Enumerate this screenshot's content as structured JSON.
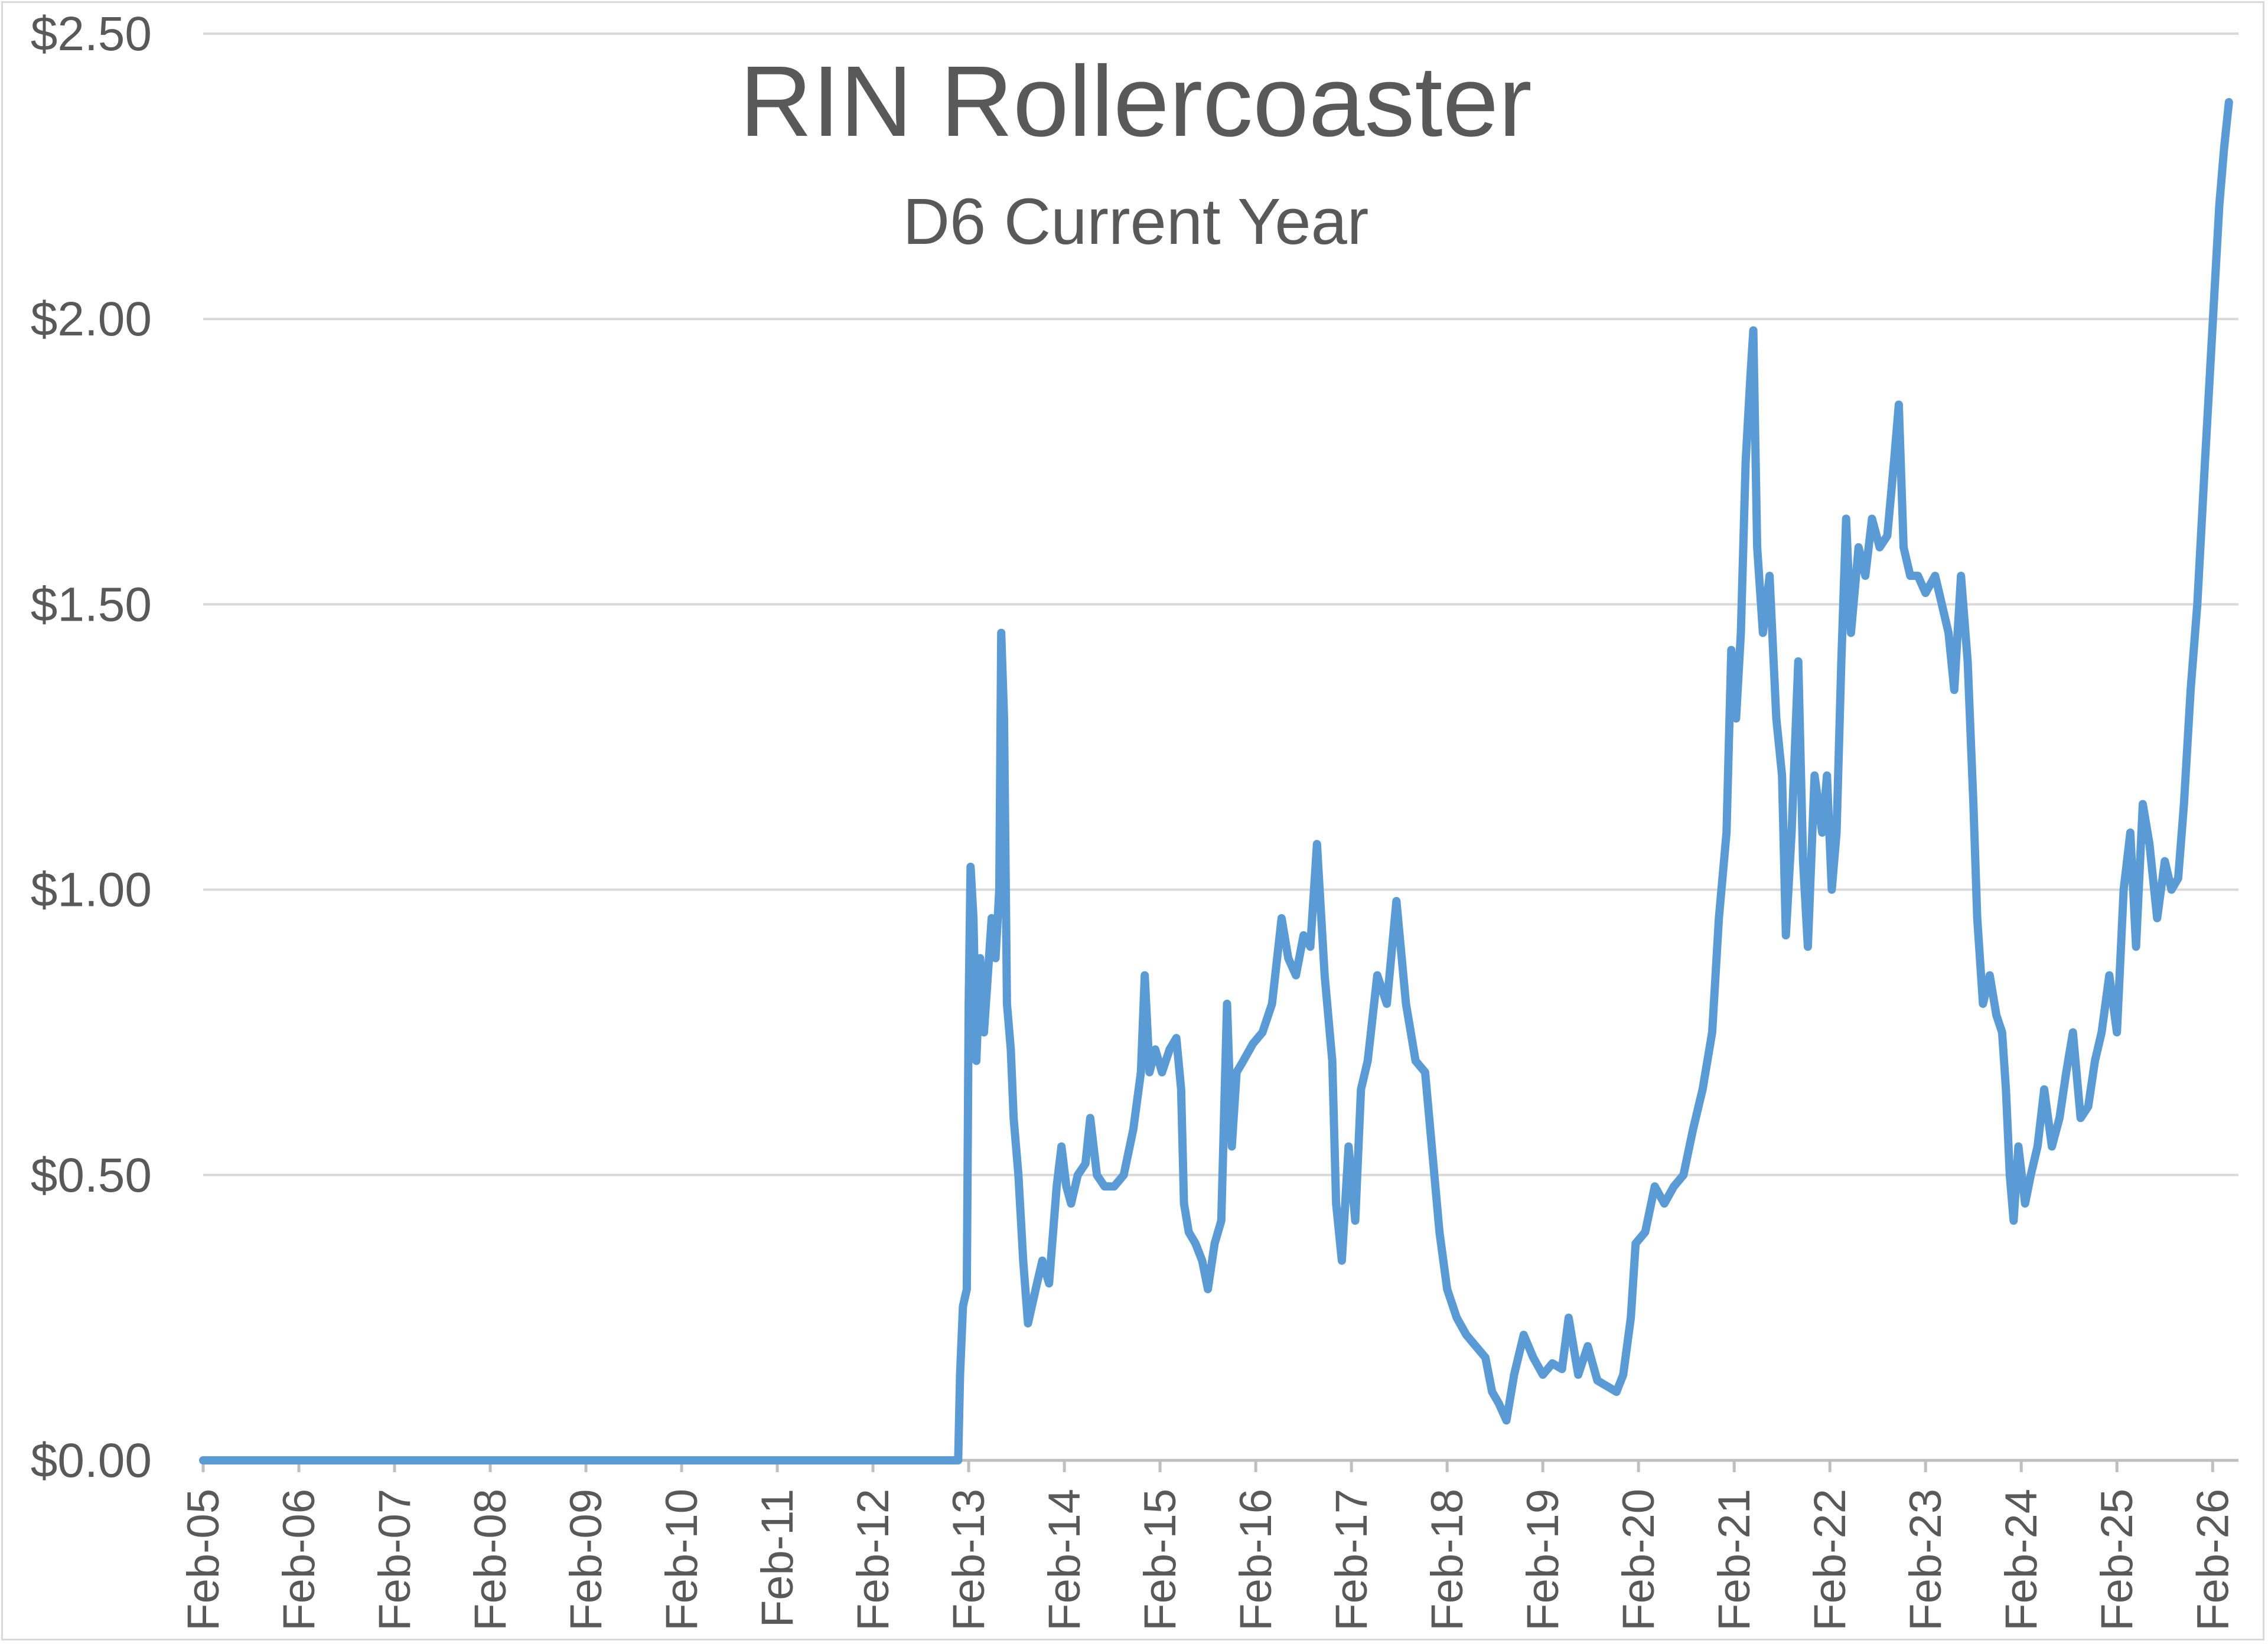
{
  "chart_data": {
    "type": "line",
    "title": "RIN Rollercoaster",
    "subtitle": "D6 Current Year",
    "xlabel": "",
    "ylabel": "",
    "ylim": [
      0,
      2.5
    ],
    "yticks": [
      0,
      0.5,
      1.0,
      1.5,
      2.0,
      2.5
    ],
    "ytick_labels": [
      "$0.00",
      "$0.50",
      "$1.00",
      "$1.50",
      "$2.00",
      "$2.50"
    ],
    "xtick_labels": [
      "Feb-05",
      "Feb-06",
      "Feb-07",
      "Feb-08",
      "Feb-09",
      "Feb-10",
      "Feb-11",
      "Feb-12",
      "Feb-13",
      "Feb-14",
      "Feb-15",
      "Feb-16",
      "Feb-17",
      "Feb-18",
      "Feb-19",
      "Feb-20",
      "Feb-21",
      "Feb-22",
      "Feb-23",
      "Feb-24",
      "Feb-25",
      "Feb-26"
    ],
    "xlim": [
      2005.08,
      2026.35
    ],
    "grid": true,
    "legend": false,
    "series_color": "#5b9bd5",
    "series": [
      {
        "values": [
          [
            2005.08,
            0.0
          ],
          [
            2012.97,
            0.0
          ],
          [
            2012.99,
            0.15
          ],
          [
            2013.02,
            0.27
          ],
          [
            2013.06,
            0.3
          ],
          [
            2013.08,
            0.8
          ],
          [
            2013.1,
            1.04
          ],
          [
            2013.13,
            0.95
          ],
          [
            2013.16,
            0.7
          ],
          [
            2013.2,
            0.88
          ],
          [
            2013.24,
            0.75
          ],
          [
            2013.28,
            0.85
          ],
          [
            2013.32,
            0.95
          ],
          [
            2013.36,
            0.88
          ],
          [
            2013.4,
            1.0
          ],
          [
            2013.42,
            1.45
          ],
          [
            2013.45,
            1.3
          ],
          [
            2013.48,
            0.8
          ],
          [
            2013.52,
            0.72
          ],
          [
            2013.55,
            0.6
          ],
          [
            2013.6,
            0.5
          ],
          [
            2013.65,
            0.35
          ],
          [
            2013.7,
            0.24
          ],
          [
            2013.78,
            0.3
          ],
          [
            2013.85,
            0.35
          ],
          [
            2013.92,
            0.31
          ],
          [
            2014.0,
            0.48
          ],
          [
            2014.05,
            0.55
          ],
          [
            2014.1,
            0.48
          ],
          [
            2014.15,
            0.45
          ],
          [
            2014.22,
            0.5
          ],
          [
            2014.3,
            0.52
          ],
          [
            2014.35,
            0.6
          ],
          [
            2014.42,
            0.5
          ],
          [
            2014.5,
            0.48
          ],
          [
            2014.6,
            0.48
          ],
          [
            2014.7,
            0.5
          ],
          [
            2014.8,
            0.58
          ],
          [
            2014.88,
            0.68
          ],
          [
            2014.92,
            0.85
          ],
          [
            2014.97,
            0.68
          ],
          [
            2015.03,
            0.72
          ],
          [
            2015.1,
            0.68
          ],
          [
            2015.18,
            0.72
          ],
          [
            2015.25,
            0.74
          ],
          [
            2015.3,
            0.65
          ],
          [
            2015.33,
            0.45
          ],
          [
            2015.38,
            0.4
          ],
          [
            2015.45,
            0.38
          ],
          [
            2015.52,
            0.35
          ],
          [
            2015.58,
            0.3
          ],
          [
            2015.65,
            0.38
          ],
          [
            2015.72,
            0.42
          ],
          [
            2015.78,
            0.8
          ],
          [
            2015.83,
            0.55
          ],
          [
            2015.88,
            0.68
          ],
          [
            2015.95,
            0.7
          ],
          [
            2016.05,
            0.73
          ],
          [
            2016.15,
            0.75
          ],
          [
            2016.25,
            0.8
          ],
          [
            2016.35,
            0.95
          ],
          [
            2016.42,
            0.88
          ],
          [
            2016.5,
            0.85
          ],
          [
            2016.58,
            0.92
          ],
          [
            2016.65,
            0.9
          ],
          [
            2016.72,
            1.08
          ],
          [
            2016.8,
            0.85
          ],
          [
            2016.88,
            0.7
          ],
          [
            2016.92,
            0.45
          ],
          [
            2016.98,
            0.35
          ],
          [
            2017.05,
            0.55
          ],
          [
            2017.12,
            0.42
          ],
          [
            2017.18,
            0.65
          ],
          [
            2017.25,
            0.7
          ],
          [
            2017.35,
            0.85
          ],
          [
            2017.45,
            0.8
          ],
          [
            2017.55,
            0.98
          ],
          [
            2017.65,
            0.8
          ],
          [
            2017.75,
            0.7
          ],
          [
            2017.85,
            0.68
          ],
          [
            2017.92,
            0.55
          ],
          [
            2018.0,
            0.4
          ],
          [
            2018.08,
            0.3
          ],
          [
            2018.18,
            0.25
          ],
          [
            2018.28,
            0.22
          ],
          [
            2018.38,
            0.2
          ],
          [
            2018.48,
            0.18
          ],
          [
            2018.55,
            0.12
          ],
          [
            2018.62,
            0.1
          ],
          [
            2018.7,
            0.07
          ],
          [
            2018.78,
            0.15
          ],
          [
            2018.88,
            0.22
          ],
          [
            2018.98,
            0.18
          ],
          [
            2019.08,
            0.15
          ],
          [
            2019.18,
            0.17
          ],
          [
            2019.28,
            0.16
          ],
          [
            2019.35,
            0.25
          ],
          [
            2019.45,
            0.15
          ],
          [
            2019.55,
            0.2
          ],
          [
            2019.65,
            0.14
          ],
          [
            2019.75,
            0.13
          ],
          [
            2019.85,
            0.12
          ],
          [
            2019.92,
            0.15
          ],
          [
            2020.0,
            0.25
          ],
          [
            2020.05,
            0.38
          ],
          [
            2020.15,
            0.4
          ],
          [
            2020.25,
            0.48
          ],
          [
            2020.35,
            0.45
          ],
          [
            2020.45,
            0.48
          ],
          [
            2020.55,
            0.5
          ],
          [
            2020.65,
            0.58
          ],
          [
            2020.75,
            0.65
          ],
          [
            2020.85,
            0.75
          ],
          [
            2020.92,
            0.95
          ],
          [
            2021.0,
            1.1
          ],
          [
            2021.05,
            1.42
          ],
          [
            2021.1,
            1.3
          ],
          [
            2021.15,
            1.45
          ],
          [
            2021.2,
            1.75
          ],
          [
            2021.25,
            1.9
          ],
          [
            2021.28,
            1.98
          ],
          [
            2021.32,
            1.6
          ],
          [
            2021.38,
            1.45
          ],
          [
            2021.45,
            1.55
          ],
          [
            2021.52,
            1.3
          ],
          [
            2021.58,
            1.2
          ],
          [
            2021.62,
            0.92
          ],
          [
            2021.68,
            1.1
          ],
          [
            2021.75,
            1.4
          ],
          [
            2021.8,
            1.05
          ],
          [
            2021.85,
            0.9
          ],
          [
            2021.92,
            1.2
          ],
          [
            2022.0,
            1.1
          ],
          [
            2022.05,
            1.2
          ],
          [
            2022.1,
            1.0
          ],
          [
            2022.15,
            1.1
          ],
          [
            2022.2,
            1.4
          ],
          [
            2022.25,
            1.65
          ],
          [
            2022.3,
            1.45
          ],
          [
            2022.38,
            1.6
          ],
          [
            2022.45,
            1.55
          ],
          [
            2022.52,
            1.65
          ],
          [
            2022.6,
            1.6
          ],
          [
            2022.68,
            1.62
          ],
          [
            2022.75,
            1.75
          ],
          [
            2022.8,
            1.85
          ],
          [
            2022.85,
            1.6
          ],
          [
            2022.92,
            1.55
          ],
          [
            2023.0,
            1.55
          ],
          [
            2023.08,
            1.52
          ],
          [
            2023.18,
            1.55
          ],
          [
            2023.25,
            1.5
          ],
          [
            2023.32,
            1.45
          ],
          [
            2023.38,
            1.35
          ],
          [
            2023.45,
            1.55
          ],
          [
            2023.52,
            1.4
          ],
          [
            2023.58,
            1.15
          ],
          [
            2023.62,
            0.95
          ],
          [
            2023.68,
            0.8
          ],
          [
            2023.75,
            0.85
          ],
          [
            2023.82,
            0.78
          ],
          [
            2023.88,
            0.75
          ],
          [
            2023.92,
            0.65
          ],
          [
            2023.96,
            0.5
          ],
          [
            2024.0,
            0.42
          ],
          [
            2024.05,
            0.55
          ],
          [
            2024.12,
            0.45
          ],
          [
            2024.18,
            0.5
          ],
          [
            2024.25,
            0.55
          ],
          [
            2024.32,
            0.65
          ],
          [
            2024.4,
            0.55
          ],
          [
            2024.48,
            0.6
          ],
          [
            2024.55,
            0.68
          ],
          [
            2024.62,
            0.75
          ],
          [
            2024.7,
            0.6
          ],
          [
            2024.78,
            0.62
          ],
          [
            2024.85,
            0.7
          ],
          [
            2024.92,
            0.75
          ],
          [
            2025.0,
            0.85
          ],
          [
            2025.08,
            0.75
          ],
          [
            2025.15,
            1.0
          ],
          [
            2025.22,
            1.1
          ],
          [
            2025.28,
            0.9
          ],
          [
            2025.35,
            1.15
          ],
          [
            2025.42,
            1.08
          ],
          [
            2025.5,
            0.95
          ],
          [
            2025.58,
            1.05
          ],
          [
            2025.65,
            1.0
          ],
          [
            2025.72,
            1.02
          ],
          [
            2025.78,
            1.15
          ],
          [
            2025.85,
            1.35
          ],
          [
            2025.92,
            1.5
          ],
          [
            2026.0,
            1.75
          ],
          [
            2026.05,
            1.9
          ],
          [
            2026.1,
            2.05
          ],
          [
            2026.15,
            2.2
          ],
          [
            2026.2,
            2.3
          ],
          [
            2026.25,
            2.38
          ]
        ]
      }
    ]
  }
}
